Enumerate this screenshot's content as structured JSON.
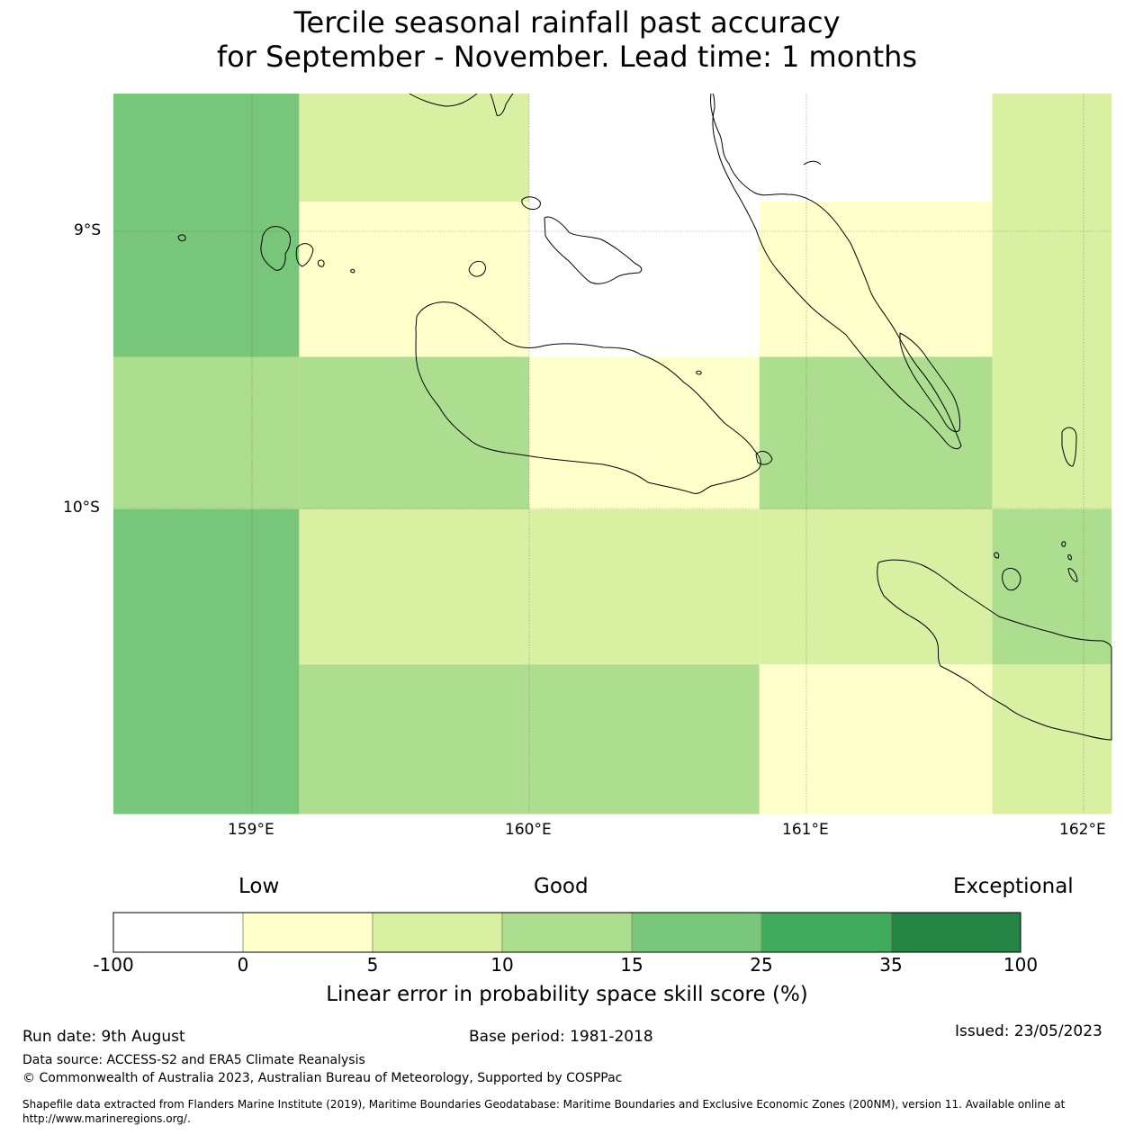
{
  "title": {
    "line1": "Tercile seasonal rainfall past accuracy",
    "line2": "for September - November. Lead time: 1 months"
  },
  "map": {
    "lon_ticks": [
      "159°E",
      "160°E",
      "161°E",
      "162°E"
    ],
    "lat_ticks": [
      "9°S",
      "10°S"
    ],
    "grid_cells": [
      {
        "lon_range": [
          158.5,
          159.17
        ],
        "lat_range": [
          -8.5,
          -9.45
        ],
        "skill_class": "15-25"
      },
      {
        "lon_range": [
          158.5,
          159.17
        ],
        "lat_range": [
          -9.45,
          -10.0
        ],
        "skill_class": "10-15"
      },
      {
        "lon_range": [
          158.5,
          159.17
        ],
        "lat_range": [
          -10.0,
          -11.1
        ],
        "skill_class": "15-25"
      },
      {
        "lon_range": [
          159.17,
          160.0
        ],
        "lat_range": [
          -8.5,
          -8.89
        ],
        "skill_class": "5-10"
      },
      {
        "lon_range": [
          159.17,
          160.0
        ],
        "lat_range": [
          -8.89,
          -9.45
        ],
        "skill_class": "0-5"
      },
      {
        "lon_range": [
          159.17,
          160.0
        ],
        "lat_range": [
          -9.45,
          -10.0
        ],
        "skill_class": "10-15"
      },
      {
        "lon_range": [
          159.17,
          160.0
        ],
        "lat_range": [
          -10.0,
          -10.56
        ],
        "skill_class": "5-10"
      },
      {
        "lon_range": [
          159.17,
          160.0
        ],
        "lat_range": [
          -10.56,
          -11.1
        ],
        "skill_class": "10-15"
      },
      {
        "lon_range": [
          160.0,
          160.83
        ],
        "lat_range": [
          -8.5,
          -9.45
        ],
        "skill_class": "-100-0"
      },
      {
        "lon_range": [
          160.0,
          160.83
        ],
        "lat_range": [
          -9.45,
          -10.0
        ],
        "skill_class": "0-5"
      },
      {
        "lon_range": [
          160.0,
          160.83
        ],
        "lat_range": [
          -10.0,
          -10.56
        ],
        "skill_class": "5-10"
      },
      {
        "lon_range": [
          160.0,
          160.83
        ],
        "lat_range": [
          -10.56,
          -11.1
        ],
        "skill_class": "10-15"
      },
      {
        "lon_range": [
          160.83,
          161.67
        ],
        "lat_range": [
          -8.5,
          -8.89
        ],
        "skill_class": "-100-0"
      },
      {
        "lon_range": [
          160.83,
          161.67
        ],
        "lat_range": [
          -8.89,
          -9.45
        ],
        "skill_class": "0-5"
      },
      {
        "lon_range": [
          160.83,
          161.67
        ],
        "lat_range": [
          -9.45,
          -10.0
        ],
        "skill_class": "10-15"
      },
      {
        "lon_range": [
          160.83,
          161.67
        ],
        "lat_range": [
          -10.0,
          -10.56
        ],
        "skill_class": "5-10"
      },
      {
        "lon_range": [
          160.83,
          161.67
        ],
        "lat_range": [
          -10.56,
          -11.1
        ],
        "skill_class": "0-5"
      },
      {
        "lon_range": [
          161.67,
          162.1
        ],
        "lat_range": [
          -8.5,
          -10.0
        ],
        "skill_class": "5-10"
      },
      {
        "lon_range": [
          161.67,
          162.1
        ],
        "lat_range": [
          -10.0,
          -10.56
        ],
        "skill_class": "10-15"
      },
      {
        "lon_range": [
          161.67,
          162.1
        ],
        "lat_range": [
          -10.56,
          -11.1
        ],
        "skill_class": "5-10"
      }
    ]
  },
  "colorbar": {
    "category_labels": {
      "low": "Low",
      "good": "Good",
      "exceptional": "Exceptional"
    },
    "ticks": [
      "-100",
      "0",
      "5",
      "10",
      "15",
      "25",
      "35",
      "100"
    ],
    "colors": [
      "#ffffff",
      "#ffffcc",
      "#d9f0a3",
      "#addd8e",
      "#78c679",
      "#41ab5d",
      "#238443"
    ],
    "label": "Linear error in probability space skill score (%)"
  },
  "footer": {
    "run_date": "Run date: 9th August",
    "base_period": "Base period: 1981-2018",
    "issued": "Issued: 23/05/2023",
    "data_source": "Data source: ACCESS-S2 and ERA5 Climate Reanalysis",
    "copyright": "© Commonwealth of Australia 2023, Australian Bureau of Meteorology, Supported by COSPPac",
    "shapefile_line1": "Shapefile data extracted from Flanders Marine Institute (2019), Maritime Boundaries Geodatabase: Maritime Boundaries and Exclusive Economic Zones (200NM), version 11. Available online at",
    "shapefile_line2": "http://www.marineregions.org/."
  }
}
